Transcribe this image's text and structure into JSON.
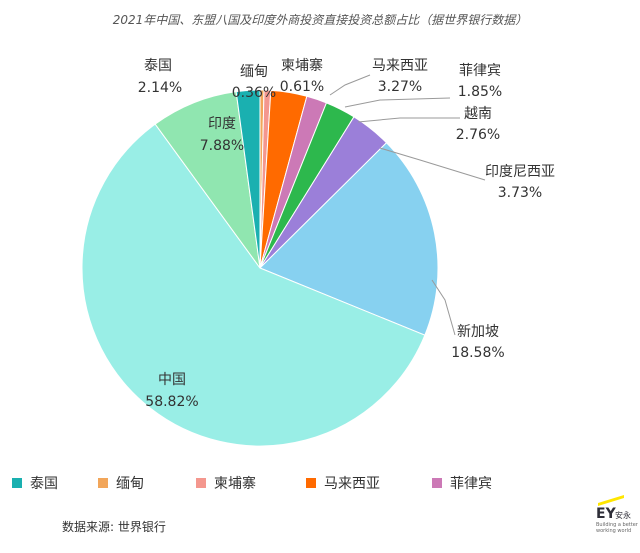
{
  "chart_data": {
    "type": "pie",
    "title": "2021年中国、东盟八国及印度外商投资直接投资总额占比（据世界银行数据）",
    "slices": [
      {
        "name": "缅甸",
        "value_label": "0.36%",
        "value": 0.36,
        "color": "#f2a65a"
      },
      {
        "name": "柬埔寨",
        "value_label": "0.61%",
        "value": 0.61,
        "color": "#f4978e"
      },
      {
        "name": "马来西亚",
        "value_label": "3.27%",
        "value": 3.27,
        "color": "#ff6a00"
      },
      {
        "name": "菲律宾",
        "value_label": "1.85%",
        "value": 1.85,
        "color": "#cc79b6"
      },
      {
        "name": "越南",
        "value_label": "2.76%",
        "value": 2.76,
        "color": "#2db84d"
      },
      {
        "name": "印度尼西亚",
        "value_label": "3.73%",
        "value": 3.73,
        "color": "#9b7fd9"
      },
      {
        "name": "新加坡",
        "value_label": "18.58%",
        "value": 18.58,
        "color": "#87d1f0"
      },
      {
        "name": "中国",
        "value_label": "58.82%",
        "value": 58.82,
        "color": "#99eee6"
      },
      {
        "name": "印度",
        "value_label": "7.88%",
        "value": 7.88,
        "color": "#90e6b0"
      },
      {
        "name": "泰国",
        "value_label": "2.14%",
        "value": 2.14,
        "color": "#1ab0b0"
      }
    ],
    "legend": [
      {
        "name": "泰国",
        "color": "#1ab0b0"
      },
      {
        "name": "缅甸",
        "color": "#f2a65a"
      },
      {
        "name": "柬埔寨",
        "color": "#f4978e"
      },
      {
        "name": "马来西亚",
        "color": "#ff6a00"
      },
      {
        "name": "菲律宾",
        "color": "#cc79b6"
      }
    ],
    "legend_position": "bottom"
  },
  "source": "数据来源: 世界银行",
  "logo": {
    "text": "EY",
    "suffix": "安永",
    "tagline_1": "Building a better",
    "tagline_2": "working world"
  }
}
